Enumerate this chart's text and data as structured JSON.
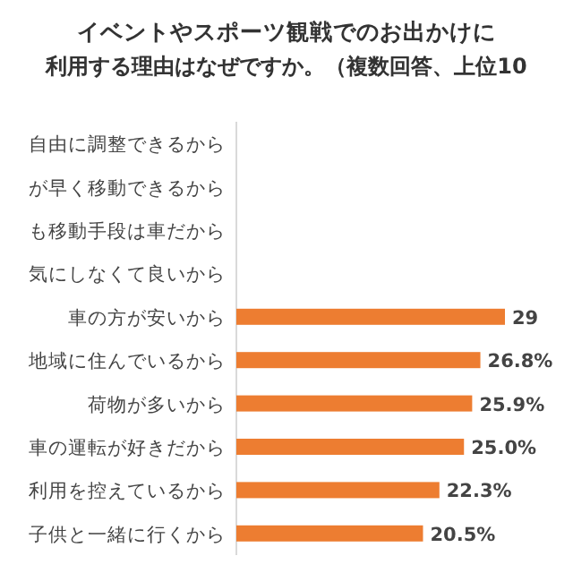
{
  "chart_data": {
    "type": "bar",
    "orientation": "horizontal",
    "title": "イベントやスポーツ観戦でのお出かけに",
    "subtitle": "利用する理由はなぜですか。（複数回答、上位10",
    "categories": [
      "自由に調整できるから",
      "が早く移動できるから",
      "も移動手段は車だから",
      "気にしなくて良いから",
      "車の方が安いから",
      "地域に住んでいるから",
      "荷物が多いから",
      "車の運転が好きだから",
      "利用を控えているから",
      "子供と一緒に行くから"
    ],
    "values": [
      null,
      null,
      null,
      null,
      29.5,
      26.8,
      25.9,
      25.0,
      22.3,
      20.5
    ],
    "value_labels": [
      null,
      null,
      null,
      null,
      "29",
      "26.8%",
      "25.9%",
      "25.0%",
      "22.3%",
      "20.5%"
    ],
    "color": "#ed7d31"
  }
}
